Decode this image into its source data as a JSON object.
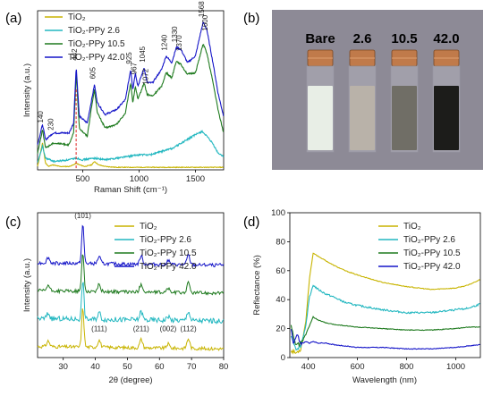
{
  "panels": {
    "a": "(a)",
    "b": "(b)",
    "c": "(c)",
    "d": "(d)"
  },
  "colors": {
    "tio2": "#c8b400",
    "ppy26": "#22b7c0",
    "ppy105": "#1e7a1e",
    "ppy420": "#1515c8",
    "marker": "#e02020"
  },
  "chart_data": [
    {
      "id": "a",
      "type": "line",
      "xlabel": "Raman Shift (cm⁻¹)",
      "ylabel": "Intensity (a.u.)",
      "xticks": [
        "500",
        "1000",
        "1500"
      ],
      "xlim": [
        100,
        1750
      ],
      "legend_position": "top-left",
      "series": [
        {
          "name": "TiO₂",
          "color": "#c8b400",
          "x": [
            100,
            144,
            170,
            200,
            230,
            300,
            380,
            420,
            442,
            470,
            520,
            580,
            605,
            640,
            700,
            800,
            900,
            1000,
            1100,
            1200,
            1300,
            1400,
            1500,
            1600,
            1700,
            1750
          ],
          "y": [
            2,
            16,
            4,
            2,
            3,
            2,
            2,
            3,
            4,
            3,
            2,
            3,
            5,
            3,
            2,
            1.5,
            1.5,
            1.5,
            1.5,
            1.5,
            1.5,
            1.5,
            1.5,
            1.5,
            1.5,
            1.5
          ]
        },
        {
          "name": "TiO₂-PPy 2.6",
          "color": "#22b7c0",
          "x": [
            100,
            144,
            170,
            250,
            380,
            442,
            500,
            605,
            700,
            900,
            1000,
            1100,
            1200,
            1300,
            1400,
            1500,
            1560,
            1600,
            1650,
            1700,
            1750
          ],
          "y": [
            4,
            14,
            7,
            5,
            6,
            7,
            6,
            7,
            6,
            8,
            9,
            9,
            11,
            13,
            17,
            21,
            23,
            20,
            16,
            10,
            8
          ]
        },
        {
          "name": "TiO₂-PPy 10.5",
          "color": "#1e7a1e",
          "x": [
            100,
            144,
            170,
            240,
            380,
            420,
            442,
            470,
            540,
            580,
            605,
            630,
            700,
            800,
            880,
            925,
            945,
            967,
            990,
            1045,
            1072,
            1120,
            1200,
            1240,
            1290,
            1330,
            1370,
            1430,
            1500,
            1540,
            1568,
            1600,
            1650,
            1700,
            1750
          ],
          "y": [
            10,
            24,
            13,
            16,
            15,
            22,
            58,
            25,
            20,
            38,
            48,
            34,
            25,
            27,
            34,
            52,
            40,
            50,
            42,
            52,
            45,
            44,
            50,
            58,
            55,
            65,
            63,
            57,
            58,
            68,
            75,
            70,
            54,
            36,
            22
          ]
        },
        {
          "name": "TiO₂-PPy 42.0",
          "color": "#1515c8",
          "x": [
            100,
            144,
            170,
            240,
            380,
            420,
            442,
            470,
            540,
            580,
            605,
            630,
            700,
            800,
            880,
            925,
            945,
            967,
            990,
            1045,
            1072,
            1120,
            1200,
            1240,
            1290,
            1330,
            1370,
            1430,
            1500,
            1540,
            1568,
            1600,
            1650,
            1700,
            1750
          ],
          "y": [
            15,
            27,
            18,
            22,
            22,
            28,
            62,
            32,
            28,
            42,
            51,
            40,
            33,
            36,
            42,
            60,
            48,
            58,
            50,
            61,
            52,
            52,
            60,
            68,
            64,
            73,
            72,
            64,
            68,
            80,
            88,
            84,
            66,
            46,
            32
          ]
        }
      ],
      "peak_labels": [
        {
          "text": "140",
          "x": 140
        },
        {
          "text": "230",
          "x": 230
        },
        {
          "text": "442",
          "x": 442
        },
        {
          "text": "605",
          "x": 605
        },
        {
          "text": "925",
          "x": 925
        },
        {
          "text": "967",
          "x": 967
        },
        {
          "text": "1045",
          "x": 1045
        },
        {
          "text": "1072",
          "x": 1072
        },
        {
          "text": "1240",
          "x": 1240
        },
        {
          "text": "1330",
          "x": 1330
        },
        {
          "text": "1370",
          "x": 1370
        },
        {
          "text": "1568",
          "x": 1568
        },
        {
          "text": "1600",
          "x": 1600
        }
      ]
    },
    {
      "id": "c",
      "type": "line",
      "xlabel": "2θ (degree)",
      "ylabel": "Intensity (a.u.)",
      "xticks": [
        "30",
        "40",
        "50",
        "60",
        "70",
        "80"
      ],
      "xlim": [
        22,
        80
      ],
      "legend_position": "top-right",
      "series": [
        {
          "name": "TiO₂",
          "color": "#c8b400",
          "offset": 0,
          "noise": 1.2
        },
        {
          "name": "TiO₂-PPy 2.6",
          "color": "#22b7c0",
          "offset": 20,
          "noise": 1.8
        },
        {
          "name": "TiO₂-PPy 10.5",
          "color": "#1e7a1e",
          "offset": 40,
          "noise": 1.2
        },
        {
          "name": "TiO₂-PPy 42.0",
          "color": "#1515c8",
          "offset": 60,
          "noise": 1.2
        }
      ],
      "peaks": [
        {
          "x": 25.3,
          "h": 4
        },
        {
          "x": 36.1,
          "h": 28
        },
        {
          "x": 41.2,
          "h": 5
        },
        {
          "x": 54.3,
          "h": 6
        },
        {
          "x": 62.7,
          "h": 3
        },
        {
          "x": 69.0,
          "h": 7
        }
      ],
      "peak_labels": [
        {
          "text": "(101)",
          "x": 36.1,
          "pos": "top"
        },
        {
          "text": "(111)",
          "x": 41.2,
          "pos": "bottom"
        },
        {
          "text": "(211)",
          "x": 54.3,
          "pos": "bottom"
        },
        {
          "text": "(002)",
          "x": 62.7,
          "pos": "bottom"
        },
        {
          "text": "(112)",
          "x": 69.0,
          "pos": "bottom"
        }
      ]
    },
    {
      "id": "d",
      "type": "line",
      "xlabel": "Wavelength (nm)",
      "ylabel": "Reflectance (%)",
      "xticks": [
        "400",
        "600",
        "800",
        "1000"
      ],
      "yticks": [
        "0",
        "20",
        "40",
        "60",
        "80",
        "100"
      ],
      "xlim": [
        325,
        1100
      ],
      "ylim": [
        0,
        100
      ],
      "legend_position": "top-right",
      "series": [
        {
          "name": "TiO₂",
          "color": "#c8b400",
          "x": [
            330,
            350,
            370,
            390,
            405,
            420,
            440,
            470,
            500,
            550,
            600,
            700,
            800,
            900,
            1000,
            1050,
            1100
          ],
          "y": [
            5,
            3,
            6,
            25,
            55,
            72,
            70,
            67,
            64,
            60,
            57,
            52,
            49,
            47,
            48,
            50,
            54
          ]
        },
        {
          "name": "TiO₂-PPy 2.6",
          "color": "#22b7c0",
          "x": [
            330,
            350,
            370,
            390,
            405,
            420,
            440,
            470,
            500,
            550,
            600,
            700,
            800,
            900,
            1000,
            1050,
            1100
          ],
          "y": [
            16,
            6,
            8,
            22,
            42,
            50,
            47,
            44,
            42,
            38,
            36,
            33,
            31,
            31,
            33,
            34,
            37
          ]
        },
        {
          "name": "TiO₂-PPy 10.5",
          "color": "#1e7a1e",
          "x": [
            330,
            350,
            370,
            390,
            405,
            420,
            440,
            470,
            500,
            550,
            600,
            700,
            800,
            900,
            1000,
            1050,
            1100
          ],
          "y": [
            22,
            8,
            10,
            16,
            22,
            28,
            26,
            24,
            23,
            22,
            21,
            20,
            19,
            19,
            20,
            21,
            21
          ]
        },
        {
          "name": "TiO₂-PPy 42.0",
          "color": "#1515c8",
          "x": [
            330,
            340,
            355,
            370,
            390,
            405,
            420,
            440,
            470,
            500,
            550,
            600,
            700,
            800,
            900,
            1000,
            1050,
            1100
          ],
          "y": [
            20,
            10,
            16,
            9,
            11,
            10,
            11,
            10,
            10,
            9,
            8,
            7,
            7,
            6,
            6,
            7,
            8,
            9
          ]
        }
      ]
    }
  ],
  "photo": {
    "labels": [
      "Bare",
      "2.6",
      "10.5",
      "42.0"
    ],
    "vial_colors": [
      "#e8eee6",
      "#b9b2a9",
      "#706e66",
      "#1c1c1a"
    ],
    "background": "#8d8a96"
  }
}
